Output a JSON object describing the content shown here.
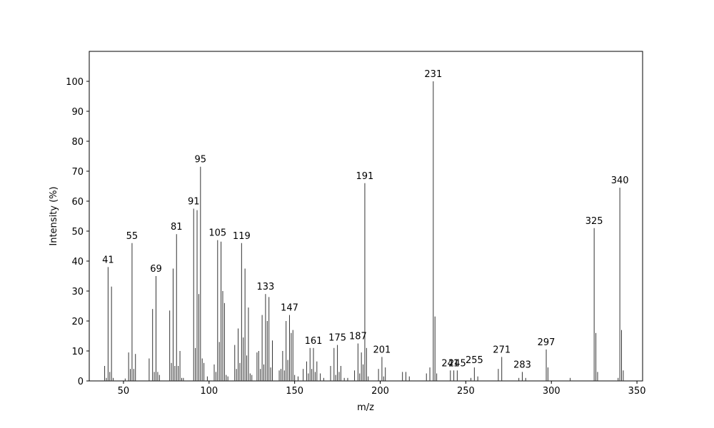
{
  "chart_data": {
    "type": "stem",
    "xlabel": "m/z",
    "ylabel": "Intensity (%)",
    "color": "#333333",
    "xlim": [
      30,
      353.3
    ],
    "xticks": [
      50,
      100,
      150,
      200,
      250,
      300,
      350
    ],
    "ylim": [
      0,
      110
    ],
    "yticks": [
      0,
      10,
      20,
      30,
      40,
      50,
      60,
      70,
      80,
      90,
      100
    ],
    "x": [
      39,
      40,
      41,
      42,
      43,
      44,
      51,
      53,
      54,
      55,
      56,
      57,
      65,
      67,
      68,
      69,
      70,
      71,
      77,
      78,
      79,
      80,
      81,
      82,
      83,
      84,
      85,
      91,
      92,
      93,
      94,
      95,
      96,
      97,
      99,
      103,
      104,
      105,
      106,
      107,
      108,
      109,
      110,
      111,
      115,
      116,
      117,
      118,
      119,
      120,
      121,
      122,
      123,
      124,
      125,
      128,
      129,
      130,
      131,
      132,
      133,
      134,
      135,
      136,
      137,
      141,
      142,
      143,
      144,
      145,
      146,
      147,
      148,
      149,
      150,
      152,
      155,
      157,
      158,
      159,
      160,
      161,
      162,
      163,
      165,
      167,
      171,
      173,
      174,
      175,
      176,
      177,
      179,
      181,
      185,
      187,
      188,
      189,
      190,
      191,
      192,
      193,
      199,
      201,
      202,
      203,
      213,
      215,
      217,
      227,
      229,
      231,
      232,
      233,
      241,
      243,
      245,
      253,
      255,
      257,
      269,
      271,
      281,
      283,
      285,
      297,
      298,
      311,
      325,
      326,
      327,
      339,
      340,
      341,
      342
    ],
    "values": [
      5,
      1,
      38,
      3,
      31.5,
      1,
      0.8,
      9.5,
      4,
      46,
      4,
      9,
      7.5,
      24,
      3,
      35,
      3,
      2,
      23.5,
      6,
      37.5,
      5,
      49,
      5,
      10,
      1,
      1,
      57.5,
      11,
      57,
      29,
      71.5,
      7.5,
      6,
      1.5,
      5.5,
      3,
      47,
      13,
      46.5,
      30,
      26,
      2,
      1.5,
      12,
      4,
      17.5,
      6,
      46,
      14.5,
      37.5,
      8.5,
      24.5,
      2.5,
      2,
      9.5,
      10,
      4,
      22,
      5.5,
      29,
      20,
      28,
      4.5,
      13.5,
      3.5,
      4,
      10,
      3.5,
      20,
      7,
      22,
      16,
      17,
      2,
      1.5,
      4,
      6.5,
      2.5,
      11,
      4,
      11,
      3,
      6.5,
      2.5,
      1,
      5,
      11,
      2,
      12,
      3,
      5,
      1,
      1,
      3.5,
      12.5,
      2.5,
      9.5,
      5.5,
      66,
      11,
      1.5,
      4,
      8,
      1.5,
      4.5,
      3,
      3,
      1.5,
      2.5,
      4.5,
      100,
      21.5,
      2.5,
      3.5,
      3.5,
      3.5,
      1,
      4.5,
      1.5,
      4,
      8,
      1,
      3,
      1,
      10.5,
      4.5,
      1,
      51,
      16,
      3,
      1,
      64.5,
      17,
      3.5
    ],
    "labeled": [
      2,
      9,
      15,
      22,
      27,
      31,
      37,
      48,
      60,
      71,
      81,
      89,
      95,
      99,
      103,
      111,
      114,
      116,
      118,
      121,
      123,
      125,
      128,
      132
    ]
  }
}
